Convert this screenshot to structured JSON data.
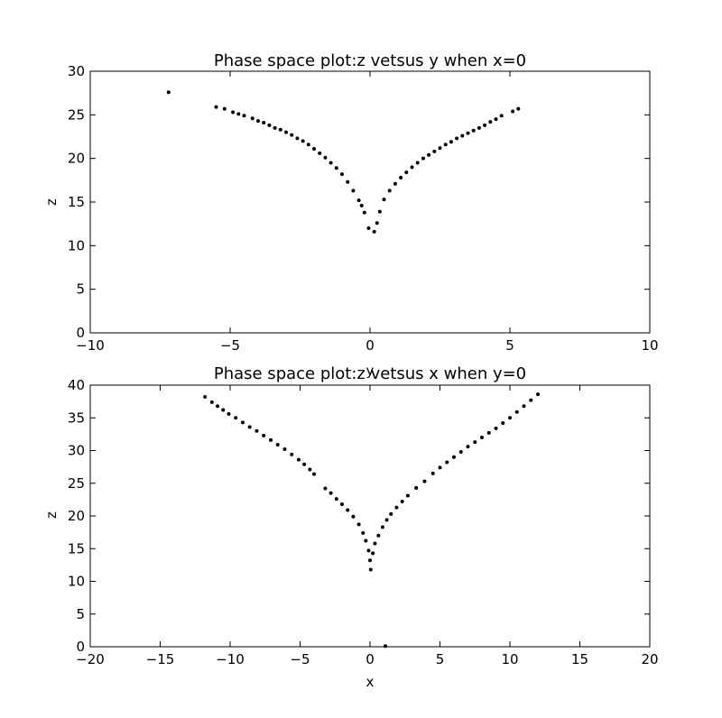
{
  "chart_data": [
    {
      "type": "scatter",
      "title": "Phase space plot:z vetsus y when x=0",
      "xlabel": "y",
      "ylabel": "z",
      "xlim": [
        -10,
        10
      ],
      "ylim": [
        0,
        30
      ],
      "xticks": [
        -10,
        -5,
        0,
        5,
        10
      ],
      "yticks": [
        0,
        5,
        10,
        15,
        20,
        25,
        30
      ],
      "xtick_labels": [
        "−10",
        "−5",
        "0",
        "5",
        "10"
      ],
      "ytick_labels": [
        "0",
        "5",
        "10",
        "15",
        "20",
        "25",
        "30"
      ],
      "grid": false,
      "marker_color": "#000000",
      "series": [
        {
          "points": [
            [
              -7.2,
              27.6
            ],
            [
              -5.5,
              25.9
            ],
            [
              -5.2,
              25.7
            ],
            [
              -4.9,
              25.3
            ],
            [
              -4.7,
              25.1
            ],
            [
              -4.5,
              24.9
            ],
            [
              -4.2,
              24.6
            ],
            [
              -4.0,
              24.3
            ],
            [
              -3.8,
              24.1
            ],
            [
              -3.6,
              23.8
            ],
            [
              -3.4,
              23.5
            ],
            [
              -3.2,
              23.3
            ],
            [
              -3.0,
              23.0
            ],
            [
              -2.8,
              22.7
            ],
            [
              -2.6,
              22.3
            ],
            [
              -2.4,
              22.0
            ],
            [
              -2.2,
              21.6
            ],
            [
              -2.0,
              21.1
            ],
            [
              -1.8,
              20.6
            ],
            [
              -1.6,
              20.1
            ],
            [
              -1.4,
              19.5
            ],
            [
              -1.2,
              18.9
            ],
            [
              -1.0,
              18.2
            ],
            [
              -0.8,
              17.3
            ],
            [
              -0.6,
              16.3
            ],
            [
              -0.4,
              15.2
            ],
            [
              -0.3,
              14.6
            ],
            [
              -0.2,
              13.8
            ],
            [
              -0.05,
              12.0
            ],
            [
              0.15,
              11.6
            ],
            [
              0.25,
              12.6
            ],
            [
              0.35,
              13.9
            ],
            [
              0.5,
              15.3
            ],
            [
              0.7,
              16.3
            ],
            [
              0.9,
              17.1
            ],
            [
              1.1,
              17.8
            ],
            [
              1.3,
              18.4
            ],
            [
              1.5,
              19.0
            ],
            [
              1.7,
              19.5
            ],
            [
              1.9,
              20.0
            ],
            [
              2.1,
              20.4
            ],
            [
              2.3,
              20.8
            ],
            [
              2.5,
              21.2
            ],
            [
              2.7,
              21.6
            ],
            [
              2.9,
              21.9
            ],
            [
              3.1,
              22.3
            ],
            [
              3.3,
              22.6
            ],
            [
              3.5,
              22.9
            ],
            [
              3.7,
              23.2
            ],
            [
              3.9,
              23.5
            ],
            [
              4.1,
              23.8
            ],
            [
              4.3,
              24.2
            ],
            [
              4.5,
              24.5
            ],
            [
              4.7,
              24.9
            ],
            [
              5.1,
              25.4
            ],
            [
              5.3,
              25.7
            ]
          ]
        }
      ]
    },
    {
      "type": "scatter",
      "title": "Phase space plot:z vetsus x when y=0",
      "xlabel": "x",
      "ylabel": "z",
      "xlim": [
        -20,
        20
      ],
      "ylim": [
        0,
        40
      ],
      "xticks": [
        -20,
        -15,
        -10,
        -5,
        0,
        5,
        10,
        15,
        20
      ],
      "yticks": [
        0,
        5,
        10,
        15,
        20,
        25,
        30,
        35,
        40
      ],
      "xtick_labels": [
        "−20",
        "−15",
        "−10",
        "−5",
        "0",
        "5",
        "10",
        "15",
        "20"
      ],
      "ytick_labels": [
        "0",
        "5",
        "10",
        "15",
        "20",
        "25",
        "30",
        "35",
        "40"
      ],
      "grid": false,
      "marker_color": "#000000",
      "series": [
        {
          "points": [
            [
              -11.8,
              38.2
            ],
            [
              -11.3,
              37.4
            ],
            [
              -10.9,
              36.8
            ],
            [
              -10.5,
              36.2
            ],
            [
              -10.1,
              35.6
            ],
            [
              -9.6,
              35.0
            ],
            [
              -9.1,
              34.3
            ],
            [
              -8.6,
              33.6
            ],
            [
              -8.1,
              33.0
            ],
            [
              -7.6,
              32.3
            ],
            [
              -7.1,
              31.6
            ],
            [
              -6.6,
              30.9
            ],
            [
              -6.1,
              30.2
            ],
            [
              -5.6,
              29.4
            ],
            [
              -5.1,
              28.6
            ],
            [
              -4.7,
              27.9
            ],
            [
              -4.3,
              27.1
            ],
            [
              -4.0,
              26.4
            ],
            [
              -3.2,
              24.2
            ],
            [
              -2.8,
              23.5
            ],
            [
              -2.4,
              22.6
            ],
            [
              -2.0,
              21.8
            ],
            [
              -1.6,
              20.9
            ],
            [
              -1.2,
              19.9
            ],
            [
              -0.8,
              18.7
            ],
            [
              -0.5,
              17.4
            ],
            [
              -0.3,
              16.2
            ],
            [
              -0.1,
              14.7
            ],
            [
              0.0,
              13.2
            ],
            [
              0.05,
              11.8
            ],
            [
              0.2,
              14.3
            ],
            [
              0.35,
              15.8
            ],
            [
              0.6,
              17.0
            ],
            [
              0.9,
              18.3
            ],
            [
              1.2,
              19.4
            ],
            [
              1.5,
              20.3
            ],
            [
              1.9,
              21.3
            ],
            [
              2.3,
              22.2
            ],
            [
              2.7,
              23.1
            ],
            [
              3.3,
              24.3
            ],
            [
              3.9,
              25.3
            ],
            [
              4.5,
              26.5
            ],
            [
              5.0,
              27.4
            ],
            [
              5.5,
              28.2
            ],
            [
              6.0,
              29.0
            ],
            [
              6.5,
              29.8
            ],
            [
              7.0,
              30.6
            ],
            [
              7.5,
              31.3
            ],
            [
              8.0,
              32.0
            ],
            [
              8.5,
              32.7
            ],
            [
              9.0,
              33.4
            ],
            [
              9.5,
              34.2
            ],
            [
              10.0,
              35.0
            ],
            [
              10.5,
              35.9
            ],
            [
              11.0,
              36.8
            ],
            [
              11.5,
              37.7
            ],
            [
              12.0,
              38.6
            ],
            [
              1.1,
              0.1
            ]
          ]
        }
      ]
    }
  ]
}
